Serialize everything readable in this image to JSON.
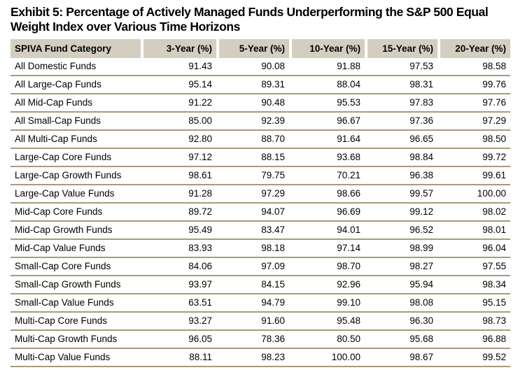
{
  "title": "Exhibit 5: Percentage of Actively Managed Funds Underperforming the S&P 500 Equal Weight Index over Various Time Horizons",
  "colors": {
    "header_bg": "#d4cec1",
    "row_divider": "#a89b7e",
    "text": "#000000",
    "page_bg": "#ffffff"
  },
  "table": {
    "columns": [
      "SPIVA Fund Category",
      "3-Year (%)",
      "5-Year (%)",
      "10-Year (%)",
      "15-Year (%)",
      "20-Year (%)"
    ],
    "rows": [
      {
        "category": "All Domestic Funds",
        "values": [
          "91.43",
          "90.08",
          "91.88",
          "97.53",
          "98.58"
        ]
      },
      {
        "category": "All Large-Cap Funds",
        "values": [
          "95.14",
          "89.31",
          "88.04",
          "98.31",
          "99.76"
        ]
      },
      {
        "category": "All Mid-Cap Funds",
        "values": [
          "91.22",
          "90.48",
          "95.53",
          "97.83",
          "97.76"
        ]
      },
      {
        "category": "All Small-Cap Funds",
        "values": [
          "85.00",
          "92.39",
          "96.67",
          "97.36",
          "97.29"
        ]
      },
      {
        "category": "All Multi-Cap Funds",
        "values": [
          "92.80",
          "88.70",
          "91.64",
          "96.65",
          "98.50"
        ]
      },
      {
        "category": "Large-Cap Core Funds",
        "values": [
          "97.12",
          "88.15",
          "93.68",
          "98.84",
          "99.72"
        ]
      },
      {
        "category": "Large-Cap Growth Funds",
        "values": [
          "98.61",
          "79.75",
          "70.21",
          "96.38",
          "99.61"
        ]
      },
      {
        "category": "Large-Cap Value Funds",
        "values": [
          "91.28",
          "97.29",
          "98.66",
          "99.57",
          "100.00"
        ]
      },
      {
        "category": "Mid-Cap Core Funds",
        "values": [
          "89.72",
          "94.07",
          "96.69",
          "99.12",
          "98.02"
        ]
      },
      {
        "category": "Mid-Cap Growth Funds",
        "values": [
          "95.49",
          "83.47",
          "94.01",
          "96.52",
          "98.01"
        ]
      },
      {
        "category": "Mid-Cap Value Funds",
        "values": [
          "83.93",
          "98.18",
          "97.14",
          "98.99",
          "96.04"
        ]
      },
      {
        "category": "Small-Cap Core Funds",
        "values": [
          "84.06",
          "97.09",
          "98.70",
          "98.27",
          "97.55"
        ]
      },
      {
        "category": "Small-Cap Growth Funds",
        "values": [
          "93.97",
          "84.15",
          "92.96",
          "95.94",
          "98.34"
        ]
      },
      {
        "category": "Small-Cap Value Funds",
        "values": [
          "63.51",
          "94.79",
          "99.10",
          "98.08",
          "95.15"
        ]
      },
      {
        "category": "Multi-Cap Core Funds",
        "values": [
          "93.27",
          "91.60",
          "95.48",
          "96.30",
          "98.73"
        ]
      },
      {
        "category": "Multi-Cap Growth Funds",
        "values": [
          "96.05",
          "78.36",
          "80.50",
          "95.68",
          "96.88"
        ]
      },
      {
        "category": "Multi-Cap Value Funds",
        "values": [
          "88.11",
          "98.23",
          "100.00",
          "98.67",
          "99.52"
        ]
      }
    ]
  }
}
